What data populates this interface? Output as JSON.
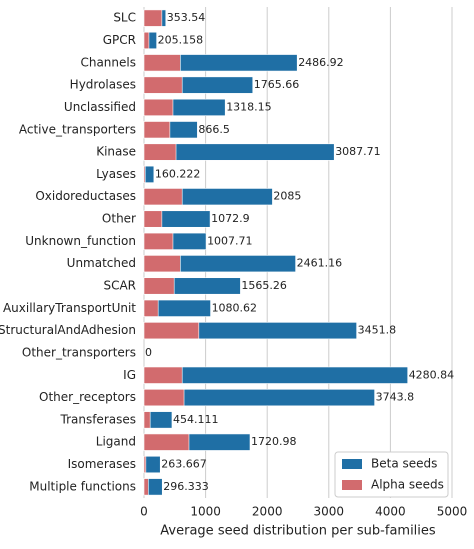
{
  "chart_data": {
    "type": "bar",
    "orientation": "horizontal",
    "xlabel": "Average seed distribution per sub-families",
    "categories": [
      "SLC",
      "GPCR",
      "Channels",
      "Hydrolases",
      "Unclassified",
      "Active_transporters",
      "Kinase",
      "Lyases",
      "Oxidoreductases",
      "Other",
      "Unknown_function",
      "Unmatched",
      "SCAR",
      "AuxillaryTransportUnit",
      "StructuralAndAdhesion",
      "Other_transporters",
      "IG",
      "Other_receptors",
      "Transferases",
      "Ligand",
      "Isomerases",
      "Multiple functions"
    ],
    "series": [
      {
        "name": "Beta seeds",
        "color": "#1f6fa5",
        "values": [
          353.54,
          205.158,
          2486.92,
          1765.66,
          1318.15,
          866.5,
          3087.71,
          160.222,
          2085,
          1072.9,
          1007.71,
          2461.16,
          1565.26,
          1080.62,
          3451.8,
          0,
          4280.84,
          3743.8,
          454.111,
          1720.98,
          263.667,
          296.333
        ]
      },
      {
        "name": "Alpha seeds",
        "color": "#d26b6e",
        "values": [
          290,
          80,
          590,
          620,
          470,
          420,
          520,
          20,
          620,
          290,
          470,
          590,
          490,
          230,
          890,
          0,
          620,
          650,
          100,
          730,
          30,
          70
        ]
      }
    ],
    "xlim": [
      0,
      5000
    ],
    "xticks": [
      0,
      1000,
      2000,
      3000,
      4000,
      5000
    ],
    "grid": true,
    "legend": "lower right"
  }
}
